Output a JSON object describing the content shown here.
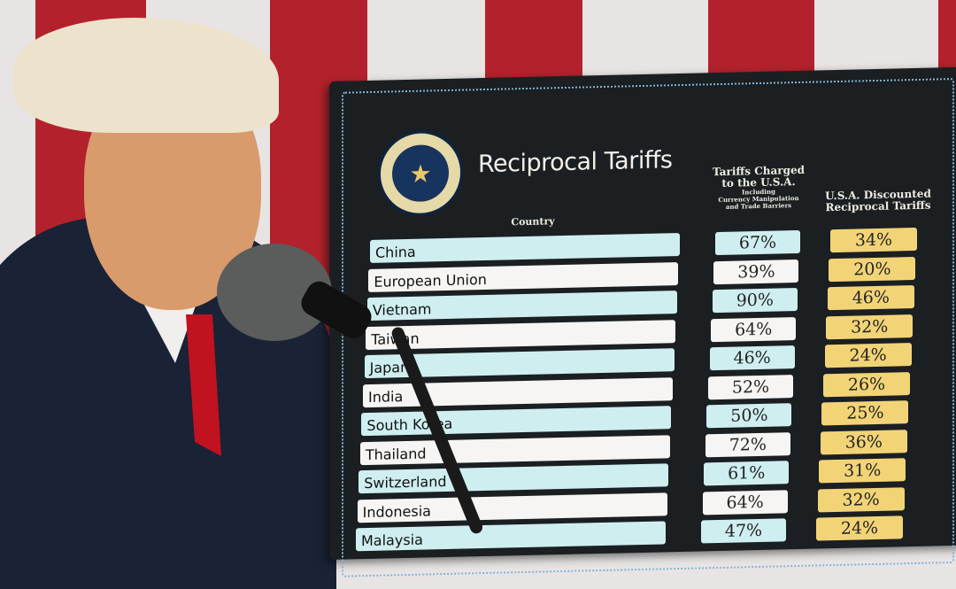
{
  "colors": {
    "flag_red": "#b3222c",
    "flag_white": "#ece9ea",
    "board": "#1b1f22",
    "row_teal": "#cfeeef",
    "row_white": "#f6f5f3",
    "discount_yellow": "#f2d477",
    "suit": "#1a2236",
    "tie": "#c1121f"
  },
  "board": {
    "title": "Reciprocal Tariffs",
    "seal_icon": "presidential-seal",
    "headers": {
      "country": "Country",
      "charged_line1": "Tariffs Charged",
      "charged_line2": "to the U.S.A.",
      "charged_line3": "Including",
      "charged_line4": "Currency Manipulation",
      "charged_line5": "and Trade Barriers",
      "discount_line1": "U.S.A. Discounted",
      "discount_line2": "Reciprocal Tariffs"
    },
    "rows": [
      {
        "country": "China",
        "charged": "67%",
        "discount": "34%"
      },
      {
        "country": "European Union",
        "charged": "39%",
        "discount": "20%"
      },
      {
        "country": "Vietnam",
        "charged": "90%",
        "discount": "46%"
      },
      {
        "country": "Taiwan",
        "charged": "64%",
        "discount": "32%"
      },
      {
        "country": "Japan",
        "charged": "46%",
        "discount": "24%"
      },
      {
        "country": "India",
        "charged": "52%",
        "discount": "26%"
      },
      {
        "country": "South Korea",
        "charged": "50%",
        "discount": "25%"
      },
      {
        "country": "Thailand",
        "charged": "72%",
        "discount": "36%"
      },
      {
        "country": "Switzerland",
        "charged": "61%",
        "discount": "31%"
      },
      {
        "country": "Indonesia",
        "charged": "64%",
        "discount": "32%"
      },
      {
        "country": "Malaysia",
        "charged": "47%",
        "discount": "24%"
      }
    ]
  }
}
